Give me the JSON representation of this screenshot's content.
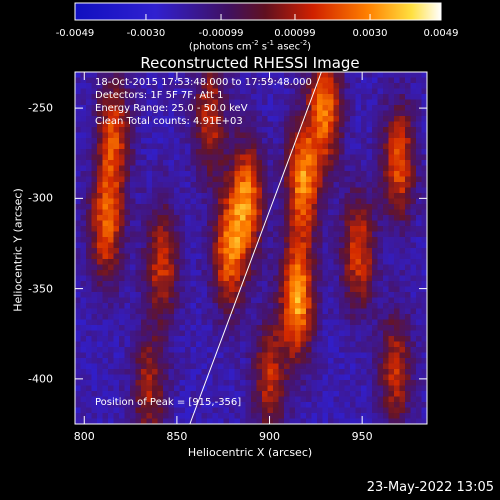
{
  "colorbar": {
    "ticks": [
      "-0.0049",
      "-0.0030",
      "-0.00099",
      "0.00099",
      "0.0030",
      "0.0049"
    ],
    "units_main": "(photons cm",
    "units_exp1": "-2",
    "units_s": " s",
    "units_exp2": "-1",
    "units_asec": " asec",
    "units_exp3": "-2",
    "units_end": ")"
  },
  "title": "Reconstructed RHESSI Image",
  "info": {
    "time": "18-Oct-2015 17:53:48.000 to 17:59:48.000",
    "detectors": "Detectors: 1F 5F 7F, Att 1",
    "energy": "Energy Range: 25.0 - 50.0 keV",
    "clean": "Clean    Total counts: 4.91E+03"
  },
  "peak_label": "Position of Peak = [915,-356]",
  "timestamp": "23-May-2022 13:05",
  "chart_data": {
    "type": "heatmap",
    "title": "Reconstructed RHESSI Image",
    "xlabel": "Heliocentric X (arcsec)",
    "ylabel": "Heliocentric Y (arcsec)",
    "xlim": [
      795,
      985
    ],
    "ylim": [
      -425,
      -230
    ],
    "x_ticks": [
      800,
      850,
      900,
      950
    ],
    "y_ticks": [
      -250,
      -300,
      -350,
      -400
    ],
    "x_tick_labels": [
      "800",
      "850",
      "900",
      "950"
    ],
    "y_tick_labels": [
      "-250",
      "-300",
      "-350",
      "-400"
    ],
    "color_range": [
      -0.0049,
      0.0049
    ],
    "colormap": "blue-purple-red-yellow-white",
    "peak": [
      915,
      -356
    ],
    "limb_line": [
      [
        857,
        -425
      ],
      [
        928,
        -230
      ]
    ],
    "emission_ridges": [
      {
        "x": 812,
        "y": -315,
        "intensity": 0.75
      },
      {
        "x": 816,
        "y": -265,
        "intensity": 0.7
      },
      {
        "x": 842,
        "y": -335,
        "intensity": 0.65
      },
      {
        "x": 868,
        "y": -255,
        "intensity": 0.6
      },
      {
        "x": 878,
        "y": -330,
        "intensity": 0.8
      },
      {
        "x": 888,
        "y": -300,
        "intensity": 0.85
      },
      {
        "x": 915,
        "y": -356,
        "intensity": 1.0
      },
      {
        "x": 918,
        "y": -290,
        "intensity": 0.9
      },
      {
        "x": 930,
        "y": -250,
        "intensity": 0.85
      },
      {
        "x": 948,
        "y": -330,
        "intensity": 0.7
      },
      {
        "x": 970,
        "y": -280,
        "intensity": 0.75
      },
      {
        "x": 968,
        "y": -395,
        "intensity": 0.6
      },
      {
        "x": 900,
        "y": -400,
        "intensity": 0.6
      },
      {
        "x": 835,
        "y": -405,
        "intensity": 0.55
      }
    ]
  }
}
